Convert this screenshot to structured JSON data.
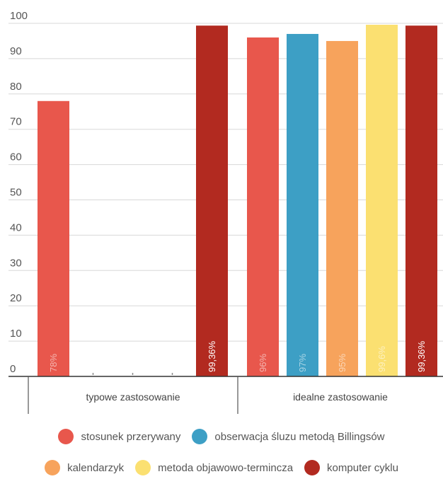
{
  "chart_data": {
    "type": "bar",
    "categories": [
      "typowe zastosowanie",
      "idealne zastosowanie"
    ],
    "ylim": [
      0,
      100
    ],
    "yticks": [
      0,
      10,
      20,
      30,
      40,
      50,
      60,
      70,
      80,
      90,
      100
    ],
    "grid": true,
    "legend_position": "bottom",
    "series": [
      {
        "name": "stosunek przerywany",
        "color": "#e8574c",
        "values": [
          78,
          96
        ],
        "labels": [
          "78%",
          "96%"
        ]
      },
      {
        "name": "obserwacja śluzu metodą Billingsów",
        "color": "#3d9fc5",
        "values": [
          null,
          97
        ],
        "labels": [
          "",
          "97%"
        ]
      },
      {
        "name": "kalendarzyk",
        "color": "#f7a35c",
        "values": [
          null,
          95
        ],
        "labels": [
          "",
          "95%"
        ]
      },
      {
        "name": "metoda objawowo-termincza",
        "color": "#fbe071",
        "values": [
          null,
          99.6
        ],
        "labels": [
          "",
          "99,6%"
        ]
      },
      {
        "name": "komputer cyklu",
        "color": "#b22a20",
        "values": [
          99.36,
          99.36
        ],
        "labels": [
          "99,36%",
          "99,36%"
        ]
      }
    ]
  }
}
